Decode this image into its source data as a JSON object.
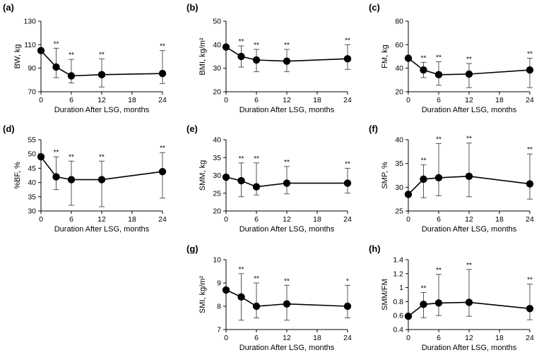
{
  "chart_data": [
    {
      "id": "a",
      "type": "line",
      "panel_label": "(a)",
      "ylabel": "BW, kg",
      "xlabel": "Duration After LSG, months",
      "ylim": [
        70,
        130
      ],
      "yticks": [
        70,
        90,
        110,
        130
      ],
      "yticklabels": [
        "70",
        "90",
        "110",
        "130"
      ],
      "xlim": [
        0,
        24
      ],
      "xticks": [
        0,
        6,
        12,
        18,
        24
      ],
      "xticklabels": [
        "0",
        "6",
        "12",
        "18",
        "24"
      ],
      "series": [
        {
          "name": "BW",
          "x": [
            0,
            3,
            6,
            12,
            24
          ],
          "y": [
            105,
            91,
            83.5,
            84.5,
            85.5
          ],
          "err_low": [
            105,
            82,
            77.5,
            74,
            77
          ],
          "err_high": [
            105,
            107,
            97.5,
            98,
            105
          ],
          "sig": [
            "",
            "**",
            "**",
            "**",
            "**"
          ]
        }
      ]
    },
    {
      "id": "b",
      "type": "line",
      "panel_label": "(b)",
      "ylabel": "BMI, kg/m²",
      "xlabel": "Duration After LSG, months",
      "ylim": [
        20,
        50
      ],
      "yticks": [
        20,
        30,
        40,
        50
      ],
      "yticklabels": [
        "20",
        "30",
        "40",
        "50"
      ],
      "xlim": [
        0,
        24
      ],
      "xticks": [
        0,
        6,
        12,
        18,
        24
      ],
      "xticklabels": [
        "0",
        "6",
        "12",
        "18",
        "24"
      ],
      "series": [
        {
          "name": "BMI",
          "x": [
            0,
            3,
            6,
            12,
            24
          ],
          "y": [
            39,
            35,
            33.5,
            33,
            34
          ],
          "err_low": [
            39,
            30.5,
            28.5,
            28.5,
            29.5
          ],
          "err_high": [
            39,
            39.5,
            38,
            38,
            40
          ],
          "sig": [
            "",
            "**",
            "**",
            "**",
            "**"
          ]
        }
      ]
    },
    {
      "id": "c",
      "type": "line",
      "panel_label": "(c)",
      "ylabel": "FM, kg",
      "xlabel": "Duration After LSG, months",
      "ylim": [
        20,
        80
      ],
      "yticks": [
        20,
        40,
        60,
        80
      ],
      "yticklabels": [
        "20",
        "40",
        "60",
        "80"
      ],
      "xlim": [
        0,
        24
      ],
      "xticks": [
        0,
        6,
        12,
        18,
        24
      ],
      "xticklabels": [
        "0",
        "6",
        "12",
        "18",
        "24"
      ],
      "series": [
        {
          "name": "FM",
          "x": [
            0,
            3,
            6,
            12,
            24
          ],
          "y": [
            48.5,
            38.5,
            34.5,
            35,
            38.5
          ],
          "err_low": [
            48.5,
            32,
            25.5,
            23.5,
            23.5
          ],
          "err_high": [
            48.5,
            45,
            45.5,
            44,
            48.5
          ],
          "sig": [
            "",
            "**",
            "**",
            "**",
            "**"
          ]
        }
      ]
    },
    {
      "id": "d",
      "type": "line",
      "panel_label": "(d)",
      "ylabel": "%BF, %",
      "xlabel": "Duration After LSG, months",
      "ylim": [
        30,
        55
      ],
      "yticks": [
        30,
        35,
        40,
        45,
        50,
        55
      ],
      "yticklabels": [
        "30",
        "35",
        "40",
        "45",
        "50",
        "55"
      ],
      "xlim": [
        0,
        24
      ],
      "xticks": [
        0,
        6,
        12,
        18,
        24
      ],
      "xticklabels": [
        "0",
        "6",
        "12",
        "18",
        "24"
      ],
      "series": [
        {
          "name": "%BF",
          "x": [
            0,
            3,
            6,
            12,
            24
          ],
          "y": [
            49,
            42,
            41,
            41,
            43.8
          ],
          "err_low": [
            49,
            37.5,
            32,
            31.5,
            34.5
          ],
          "err_high": [
            49,
            49,
            47.5,
            47.5,
            50.5
          ],
          "sig": [
            "",
            "**",
            "**",
            "**",
            "**"
          ]
        }
      ]
    },
    {
      "id": "e",
      "type": "line",
      "panel_label": "(e)",
      "ylabel": "SMM, kg",
      "xlabel": "Duration After LSG, months",
      "ylim": [
        20,
        40
      ],
      "yticks": [
        20,
        25,
        30,
        35,
        40
      ],
      "yticklabels": [
        "20",
        "25",
        "30",
        "35",
        "40"
      ],
      "xlim": [
        0,
        24
      ],
      "xticks": [
        0,
        6,
        12,
        18,
        24
      ],
      "xticklabels": [
        "0",
        "6",
        "12",
        "18",
        "24"
      ],
      "series": [
        {
          "name": "SMM",
          "x": [
            0,
            3,
            6,
            12,
            24
          ],
          "y": [
            29.5,
            28.5,
            26.8,
            27.8,
            27.8
          ],
          "err_low": [
            29.5,
            24,
            24.5,
            24.8,
            25
          ],
          "err_high": [
            29.5,
            33.5,
            33.5,
            32.5,
            32
          ],
          "sig": [
            "",
            "**",
            "**",
            "**",
            "**"
          ]
        }
      ]
    },
    {
      "id": "f",
      "type": "line",
      "panel_label": "(f)",
      "ylabel": "SMP, %",
      "xlabel": "Duration After LSG, months",
      "ylim": [
        25,
        40
      ],
      "yticks": [
        25,
        30,
        35,
        40
      ],
      "yticklabels": [
        "25",
        "30",
        "35",
        "40"
      ],
      "xlim": [
        0,
        24
      ],
      "xticks": [
        0,
        6,
        12,
        18,
        24
      ],
      "xticklabels": [
        "0",
        "6",
        "12",
        "18",
        "24"
      ],
      "series": [
        {
          "name": "SMP",
          "x": [
            0,
            3,
            6,
            12,
            24
          ],
          "y": [
            28.5,
            31.7,
            32,
            32.3,
            30.7
          ],
          "err_low": [
            28.5,
            27.8,
            28.2,
            28,
            27.5
          ],
          "err_high": [
            28.5,
            34.7,
            39.2,
            39.3,
            37
          ],
          "sig": [
            "",
            "**",
            "**",
            "**",
            "**"
          ]
        }
      ]
    },
    {
      "id": "g",
      "type": "line",
      "panel_label": "(g)",
      "ylabel": "SMI, kg/m²",
      "xlabel": "Duration After LSG, months",
      "ylim": [
        7,
        10
      ],
      "yticks": [
        7,
        8,
        9,
        10
      ],
      "yticklabels": [
        "7",
        "8",
        "9",
        "10"
      ],
      "xlim": [
        0,
        24
      ],
      "xticks": [
        0,
        6,
        12,
        18,
        24
      ],
      "xticklabels": [
        "0",
        "6",
        "12",
        "18",
        "24"
      ],
      "series": [
        {
          "name": "SMI",
          "x": [
            0,
            3,
            6,
            12,
            24
          ],
          "y": [
            8.7,
            8.4,
            8,
            8.1,
            8
          ],
          "err_low": [
            8.7,
            7.4,
            7.5,
            7.4,
            7.5
          ],
          "err_high": [
            8.7,
            9.4,
            9,
            8.9,
            8.9
          ],
          "sig": [
            "",
            "**",
            "**",
            "**",
            "*"
          ]
        }
      ]
    },
    {
      "id": "h",
      "type": "line",
      "panel_label": "(h)",
      "ylabel": "SMM/FM",
      "xlabel": "Duration After LSG, months",
      "ylim": [
        0.4,
        1.4
      ],
      "yticks": [
        0.4,
        0.6,
        0.8,
        1.0,
        1.2,
        1.4
      ],
      "yticklabels": [
        "0.4",
        "0.6",
        "0.8",
        "1",
        "1.2",
        "1.4"
      ],
      "xlim": [
        0,
        24
      ],
      "xticks": [
        0,
        6,
        12,
        18,
        24
      ],
      "xticklabels": [
        "0",
        "6",
        "12",
        "18",
        "24"
      ],
      "series": [
        {
          "name": "SMM/FM",
          "x": [
            0,
            3,
            6,
            12,
            24
          ],
          "y": [
            0.59,
            0.76,
            0.78,
            0.79,
            0.7
          ],
          "err_low": [
            0.59,
            0.57,
            0.6,
            0.59,
            0.54
          ],
          "err_high": [
            0.59,
            0.93,
            1.19,
            1.26,
            1.05
          ],
          "sig": [
            "",
            "**",
            "**",
            "**",
            "**"
          ]
        }
      ]
    }
  ]
}
